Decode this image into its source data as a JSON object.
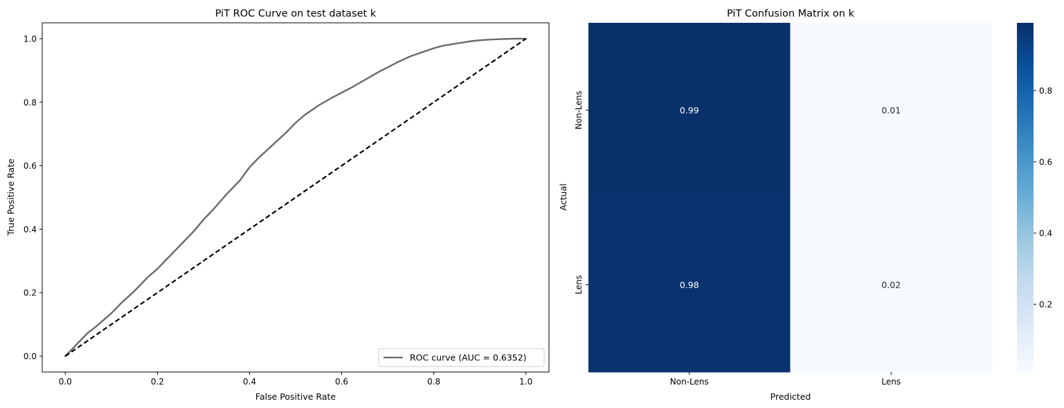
{
  "chart_data": [
    {
      "type": "line",
      "title": "PiT ROC Curve on test dataset k",
      "xlabel": "False Positive Rate",
      "ylabel": "True Positive Rate",
      "xlim": [
        -0.05,
        1.05
      ],
      "ylim": [
        -0.05,
        1.05
      ],
      "xticks": [
        0.0,
        0.2,
        0.4,
        0.6,
        0.8,
        1.0
      ],
      "xtick_labels": [
        "0.0",
        "0.2",
        "0.4",
        "0.6",
        "0.8",
        "1.0"
      ],
      "yticks": [
        0.0,
        0.2,
        0.4,
        0.6,
        0.8,
        1.0
      ],
      "ytick_labels": [
        "0.0",
        "0.2",
        "0.4",
        "0.6",
        "0.8",
        "1.0"
      ],
      "grid": false,
      "legend": {
        "position": "lower-right",
        "entries": [
          "ROC curve (AUC = 0.6352)"
        ]
      },
      "series": [
        {
          "name": "ROC curve (AUC = 0.6352)",
          "color": "#696969",
          "style": "solid",
          "x": [
            0.0,
            0.01,
            0.02,
            0.03,
            0.04,
            0.05,
            0.06,
            0.08,
            0.1,
            0.12,
            0.15,
            0.18,
            0.2,
            0.22,
            0.25,
            0.28,
            0.3,
            0.32,
            0.35,
            0.38,
            0.4,
            0.42,
            0.45,
            0.48,
            0.5,
            0.52,
            0.55,
            0.58,
            0.6,
            0.62,
            0.65,
            0.68,
            0.7,
            0.72,
            0.75,
            0.78,
            0.8,
            0.82,
            0.85,
            0.88,
            0.9,
            0.92,
            0.95,
            0.98,
            1.0
          ],
          "y": [
            0.0,
            0.015,
            0.03,
            0.045,
            0.06,
            0.075,
            0.085,
            0.11,
            0.135,
            0.165,
            0.205,
            0.25,
            0.275,
            0.305,
            0.35,
            0.395,
            0.43,
            0.46,
            0.51,
            0.555,
            0.595,
            0.625,
            0.665,
            0.705,
            0.735,
            0.76,
            0.79,
            0.815,
            0.83,
            0.845,
            0.87,
            0.895,
            0.91,
            0.925,
            0.945,
            0.96,
            0.97,
            0.978,
            0.985,
            0.992,
            0.995,
            0.997,
            0.999,
            1.0,
            1.0
          ]
        },
        {
          "name": "",
          "color": "#000000",
          "style": "dashed",
          "x": [
            0.0,
            1.0
          ],
          "y": [
            0.0,
            1.0
          ]
        }
      ]
    },
    {
      "type": "heatmap",
      "title": "PiT Confusion Matrix on k",
      "xlabel": "Predicted",
      "ylabel": "Actual",
      "x_categories": [
        "Non-Lens",
        "Lens"
      ],
      "y_categories": [
        "Non-Lens",
        "Lens"
      ],
      "values": [
        [
          0.99,
          0.01
        ],
        [
          0.98,
          0.02
        ]
      ],
      "cell_labels": [
        [
          "0.99",
          "0.01"
        ],
        [
          "0.98",
          "0.02"
        ]
      ],
      "colormap": "Blues",
      "colorbar": {
        "range": [
          0.01,
          0.99
        ],
        "ticks": [
          0.2,
          0.4,
          0.6,
          0.8
        ],
        "tick_labels": [
          "0.2",
          "0.4",
          "0.6",
          "0.8"
        ]
      }
    }
  ]
}
